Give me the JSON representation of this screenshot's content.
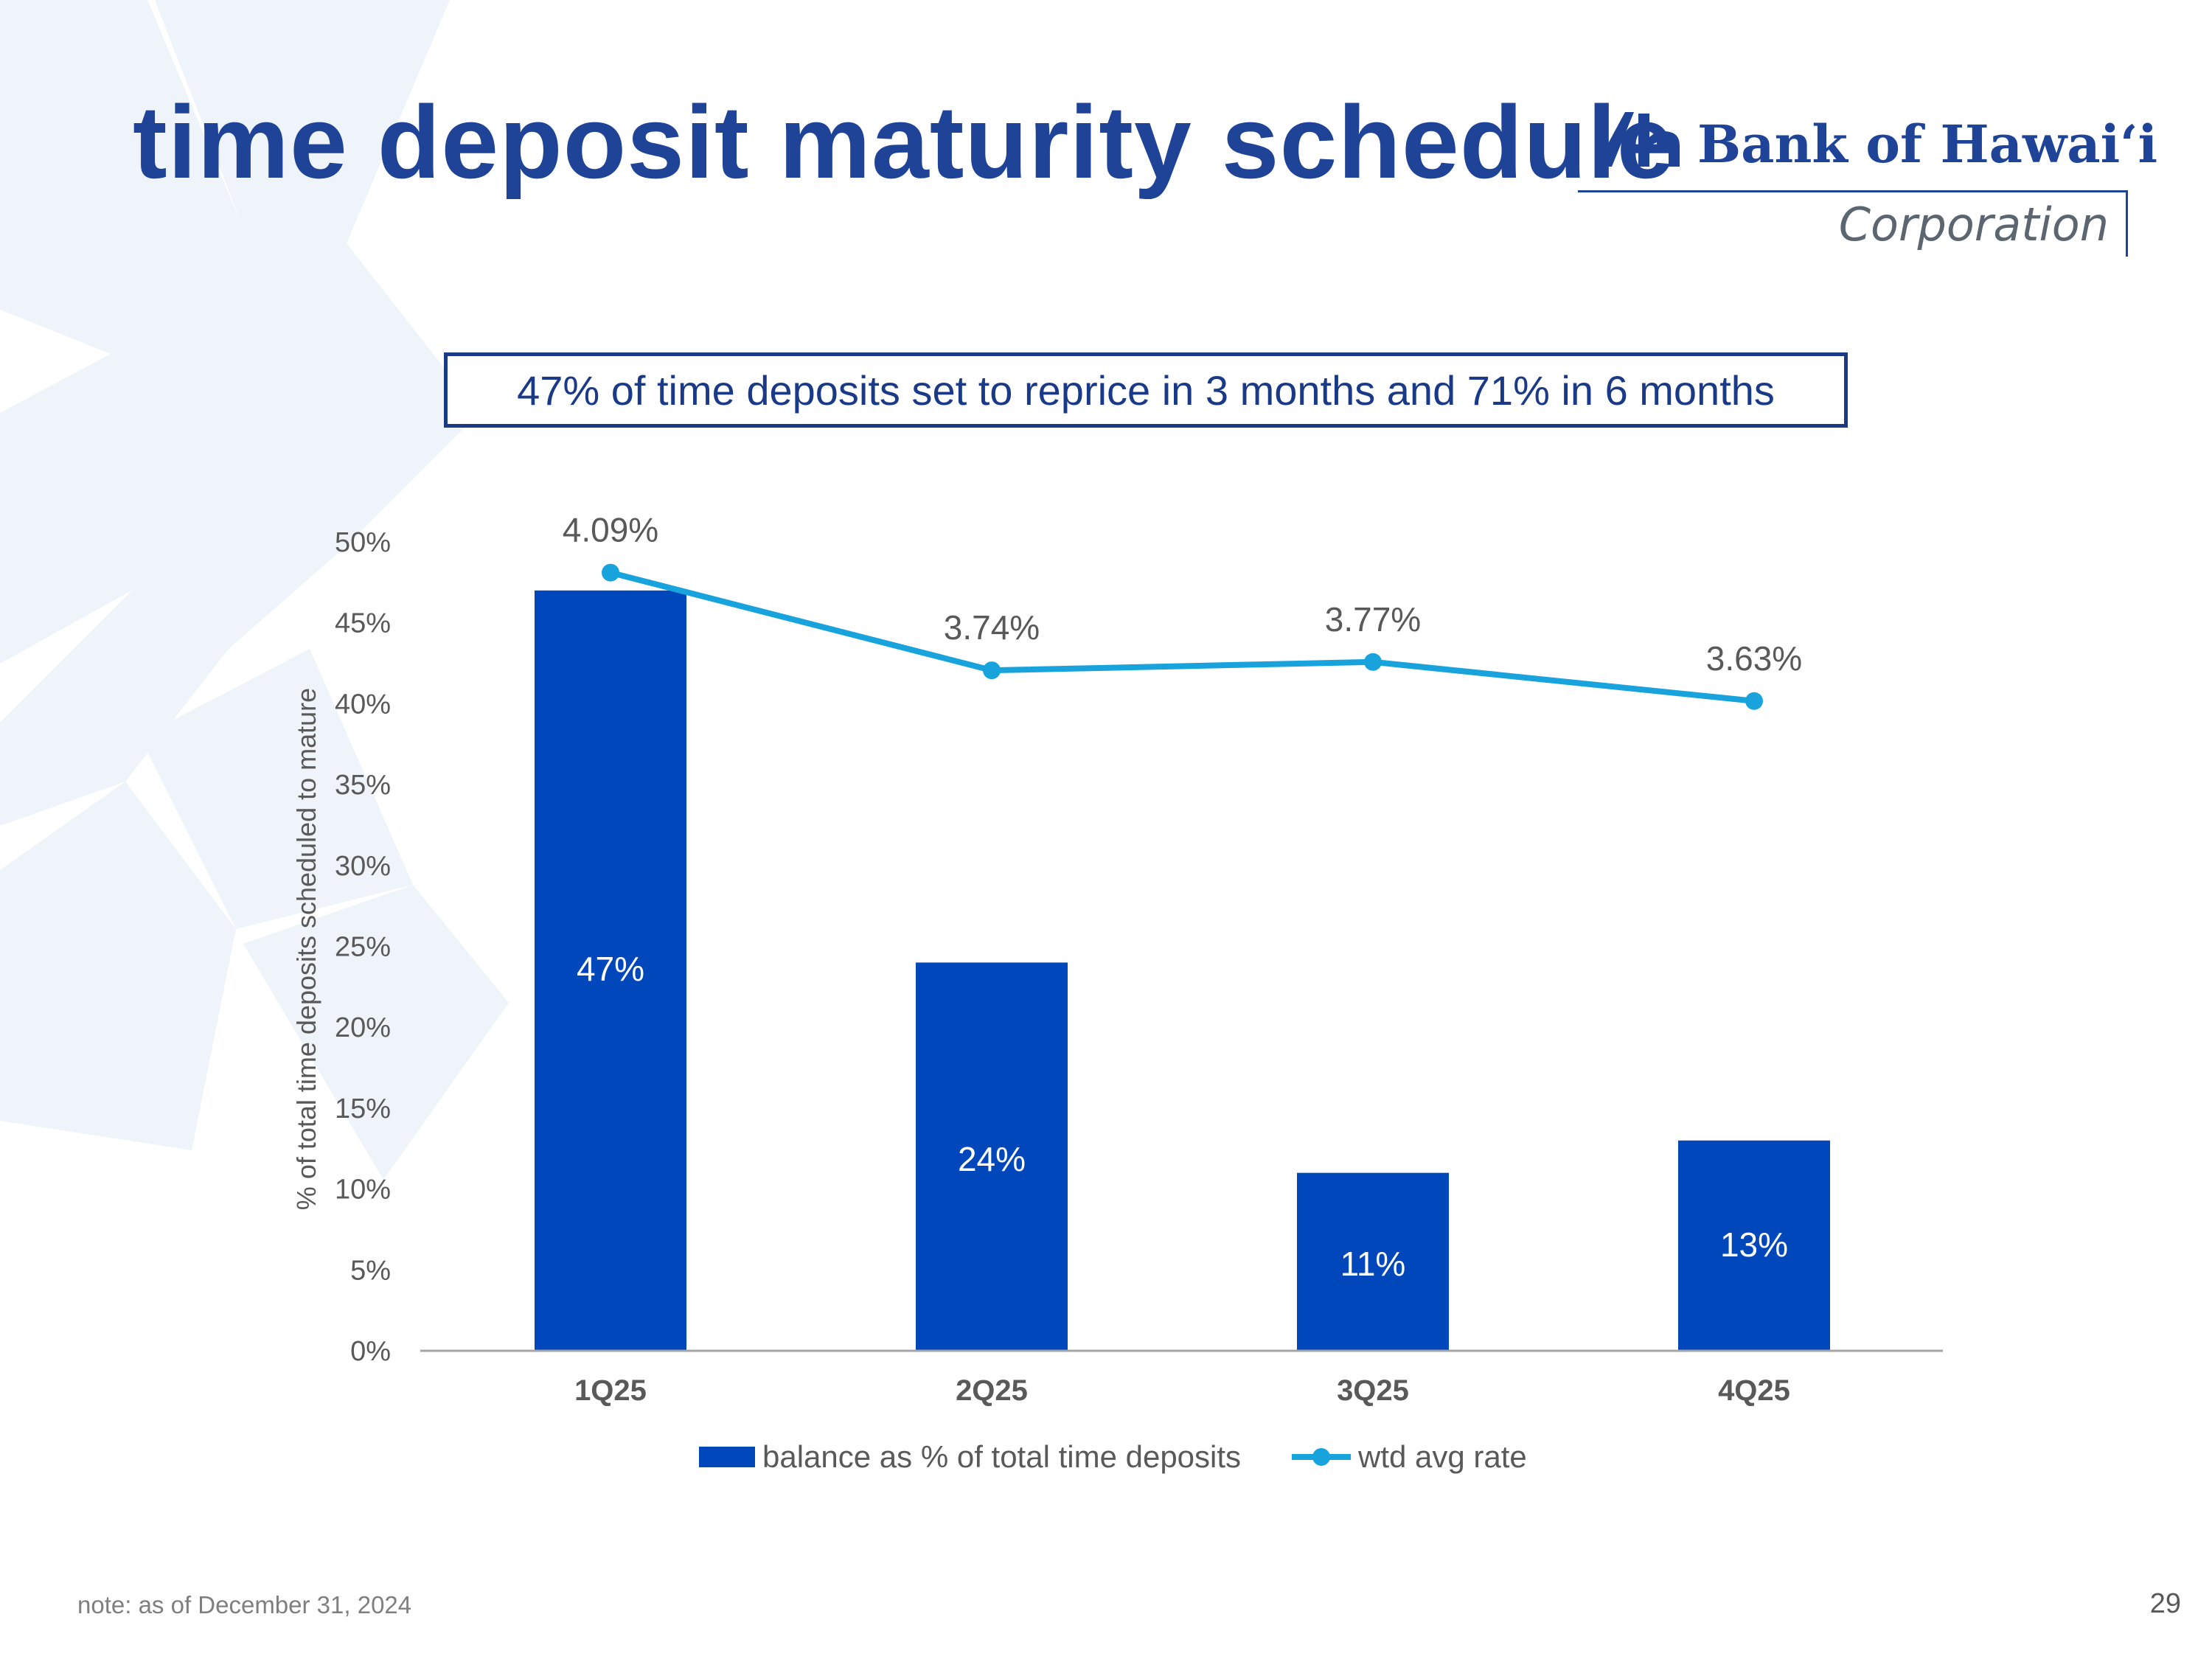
{
  "slide": {
    "title": "time deposit maturity schedule",
    "callout": "47% of time deposits set to reprice in 3 months and 71% in 6 months",
    "footnote": "note: as of December 31, 2024",
    "page_number": "29"
  },
  "logo": {
    "name": "Bank of Hawaiʻi",
    "subtitle": "Corporation",
    "mark_icon": "bank-of-hawaii-mark-icon"
  },
  "colors": {
    "title": "#1f4397",
    "bar": "#0047bb",
    "line": "#19a3dd",
    "callout_border": "#1a3a87",
    "axis_text": "#595959"
  },
  "chart_data": {
    "type": "bar",
    "categories": [
      "1Q25",
      "2Q25",
      "3Q25",
      "4Q25"
    ],
    "series": [
      {
        "name": "balance as % of total time deposits",
        "type": "bar",
        "values": [
          47,
          24,
          11,
          13
        ],
        "labels": [
          "47%",
          "24%",
          "11%",
          "13%"
        ]
      },
      {
        "name": "wtd avg rate",
        "type": "line",
        "values": [
          4.09,
          3.74,
          3.77,
          3.63
        ],
        "labels": [
          "4.09%",
          "3.74%",
          "3.77%",
          "3.63%"
        ]
      }
    ],
    "ylabel": "% of total time deposits scheduled to mature",
    "ylim": [
      0,
      50
    ],
    "yticks": [
      "0%",
      "5%",
      "10%",
      "15%",
      "20%",
      "25%",
      "30%",
      "35%",
      "40%",
      "45%",
      "50%"
    ],
    "legend_position": "bottom-center",
    "grid": false
  }
}
